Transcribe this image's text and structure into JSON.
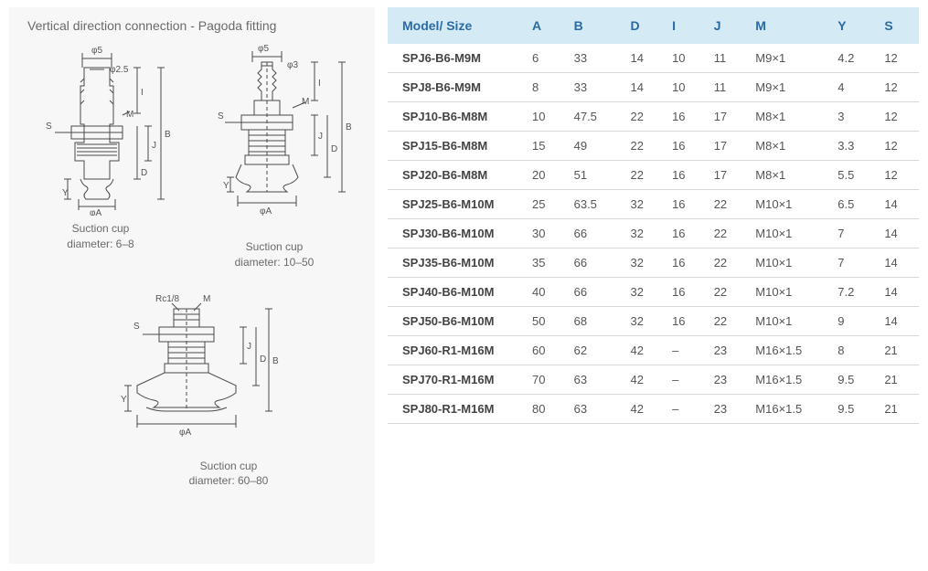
{
  "left": {
    "title": "Vertical direction connection - Pagoda fitting",
    "diag1": {
      "caption_l1": "Suction cup",
      "caption_l2": "diameter: 6–8"
    },
    "diag2": {
      "caption_l1": "Suction cup",
      "caption_l2": "diameter: 10–50"
    },
    "diag3": {
      "caption_l1": "Suction cup",
      "caption_l2": "diameter: 60–80"
    },
    "labels": {
      "phi5": "φ5",
      "phi2_5": "φ2.5",
      "phi3": "φ3",
      "phiA": "φA",
      "S": "S",
      "M": "M",
      "I": "I",
      "J": "J",
      "D": "D",
      "B": "B",
      "Y": "Y",
      "Rc18": "Rc1/8"
    }
  },
  "table": {
    "headers": [
      "Model/ Size",
      "A",
      "B",
      "D",
      "I",
      "J",
      "M",
      "Y",
      "S"
    ],
    "rows": [
      [
        "SPJ6-B6-M9M",
        "6",
        "33",
        "14",
        "10",
        "11",
        "M9×1",
        "4.2",
        "12"
      ],
      [
        "SPJ8-B6-M9M",
        "8",
        "33",
        "14",
        "10",
        "11",
        "M9×1",
        "4",
        "12"
      ],
      [
        "SPJ10-B6-M8M",
        "10",
        "47.5",
        "22",
        "16",
        "17",
        "M8×1",
        "3",
        "12"
      ],
      [
        "SPJ15-B6-M8M",
        "15",
        "49",
        "22",
        "16",
        "17",
        "M8×1",
        "3.3",
        "12"
      ],
      [
        "SPJ20-B6-M8M",
        "20",
        "51",
        "22",
        "16",
        "17",
        "M8×1",
        "5.5",
        "12"
      ],
      [
        "SPJ25-B6-M10M",
        "25",
        "63.5",
        "32",
        "16",
        "22",
        "M10×1",
        "6.5",
        "14"
      ],
      [
        "SPJ30-B6-M10M",
        "30",
        "66",
        "32",
        "16",
        "22",
        "M10×1",
        "7",
        "14"
      ],
      [
        "SPJ35-B6-M10M",
        "35",
        "66",
        "32",
        "16",
        "22",
        "M10×1",
        "7",
        "14"
      ],
      [
        "SPJ40-B6-M10M",
        "40",
        "66",
        "32",
        "16",
        "22",
        "M10×1",
        "7.2",
        "14"
      ],
      [
        "SPJ50-B6-M10M",
        "50",
        "68",
        "32",
        "16",
        "22",
        "M10×1",
        "9",
        "14"
      ],
      [
        "SPJ60-R1-M16M",
        "60",
        "62",
        "42",
        "–",
        "23",
        "M16×1.5",
        "8",
        "21"
      ],
      [
        "SPJ70-R1-M16M",
        "70",
        "63",
        "42",
        "–",
        "23",
        "M16×1.5",
        "9.5",
        "21"
      ],
      [
        "SPJ80-R1-M16M",
        "80",
        "63",
        "42",
        "–",
        "23",
        "M16×1.5",
        "9.5",
        "21"
      ]
    ]
  },
  "style": {
    "header_bg": "#d4eaf4",
    "header_color": "#2a6aa5",
    "row_border": "#d8d8d8",
    "panel_bg": "#f7f7f7",
    "diagram_stroke": "#4a4a4a",
    "text_color": "#555"
  }
}
